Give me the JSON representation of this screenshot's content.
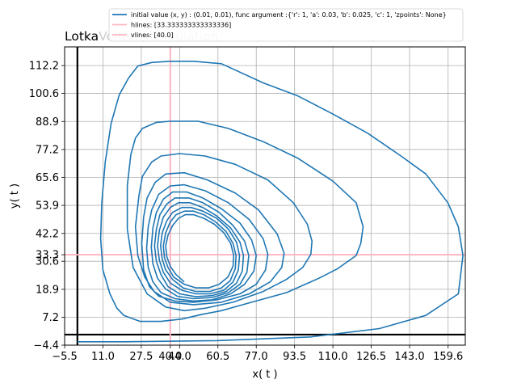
{
  "chart_data": {
    "type": "line",
    "title": "LotkaVolterra Simulation",
    "title_colors": [
      "#000000",
      "#cccccc"
    ],
    "title_split": 5,
    "xlabel": "x( t )",
    "ylabel": "y( t )",
    "xlim": [
      -5.5,
      167.0
    ],
    "ylim": [
      -4.4,
      120.0
    ],
    "grid": true,
    "legend_position": "top",
    "xticks": [
      -5.5,
      11.0,
      27.5,
      40.0,
      44.0,
      60.5,
      77.0,
      93.5,
      110.0,
      126.5,
      143.0,
      159.6
    ],
    "xtick_labels": [
      "−5.5",
      "11.0",
      "27.5",
      "40.0",
      "44.0",
      "60.5",
      "77.0",
      "93.5",
      "110.0",
      "126.5",
      "143.0",
      "159.6"
    ],
    "yticks": [
      -4.4,
      7.2,
      18.9,
      30.6,
      33.3,
      42.2,
      53.9,
      65.6,
      77.2,
      88.9,
      100.6,
      112.2
    ],
    "ytick_labels": [
      "−4.4",
      "7.2",
      "18.9",
      "30.6",
      "33.3",
      "42.2",
      "53.9",
      "65.6",
      "77.2",
      "88.9",
      "100.6",
      "112.2"
    ],
    "hlines": [
      33.333333333333336
    ],
    "vlines": [
      40.0
    ],
    "hlines_color": "#ffb6c1",
    "vlines_color": "#ffb6c1",
    "axis_lines_color": "#000000",
    "series_color": "#1f77b4",
    "legend": [
      "initial value (x, y) : (0.01, 0.01), func argument :{'r': 1, 'a': 0.03, 'b': 0.025, 'c': 1, 'zpoints': None}",
      "hlines: [33.333333333333336]",
      "vlines: [40.0]"
    ],
    "series": [
      {
        "name": "initial value (x, y) : (0.01, 0.01), func argument :{'r': 1, 'a': 0.03, 'b': 0.025, 'c': 1, 'zpoints': None}",
        "x": [
          0.0,
          5.0,
          20.0,
          60.0,
          100.0,
          130.0,
          150.0,
          164.0,
          166.0,
          164.0,
          159.5,
          150.0,
          140.0,
          125.0,
          110.0,
          95.0,
          80.0,
          62.0,
          50.0,
          40.0,
          32.0,
          26.0,
          22.0,
          18.0,
          14.5,
          12.0,
          10.5,
          10.0,
          11.0,
          14.0,
          17.0,
          20.0,
          27.0,
          36.0,
          45.0,
          54.0,
          62.0,
          75.0,
          90.0,
          104.0,
          112.0,
          120.0,
          122.0,
          123.0,
          120.0,
          110.0,
          95.0,
          80.0,
          65.0,
          52.0,
          40.0,
          34.0,
          28.0,
          25.0,
          23.0,
          21.5,
          21.5,
          24.0,
          30.0,
          38.0,
          46.0,
          55.0,
          67.0,
          80.0,
          90.0,
          97.0,
          100.5,
          101.0,
          99.0,
          93.0,
          82.0,
          68.0,
          55.0,
          44.0,
          36.0,
          32.0,
          28.0,
          26.5,
          25.0,
          26.0,
          29.0,
          33.0,
          40.0,
          50.0,
          62.0,
          74.0,
          83.0,
          88.0,
          89.0,
          86.0,
          78.0,
          68.0,
          56.0,
          46.0,
          38.0,
          33.5,
          30.0,
          28.5,
          27.7,
          28.5,
          31.0,
          35.0,
          42.0,
          50.0,
          60.0,
          70.0,
          77.0,
          81.0,
          82.0,
          80.0,
          74.0,
          65.0,
          55.0,
          46.0,
          40.0,
          35.0,
          32.0,
          30.5,
          29.8,
          30.5,
          32.5,
          36.0,
          42.0,
          50.0,
          58.0,
          66.0,
          72.0,
          76.0,
          77.0,
          75.0,
          70.0,
          62.0,
          54.0,
          47.0,
          41.0,
          37.0,
          34.0,
          32.5,
          31.8,
          32.5,
          34.5,
          38.0,
          43.0,
          50.0,
          58.0,
          65.0,
          70.0,
          73.0,
          73.8,
          72.0,
          67.0,
          61.0,
          54.0,
          48.0,
          42.0,
          38.5,
          35.5,
          34.0,
          33.2,
          34.0,
          36.0,
          39.0,
          44.0,
          51.0,
          58.0,
          64.0,
          68.5,
          71.0,
          71.5,
          70.0,
          66.0,
          60.0,
          54.0,
          48.5,
          43.5,
          40.0,
          37.0,
          35.3,
          34.5,
          35.3,
          37.0,
          40.0,
          45.0,
          51.0,
          57.0,
          63.0,
          67.0,
          69.3,
          69.8,
          68.5,
          65.0,
          60.0,
          54.0,
          49.0,
          45.0,
          41.0,
          38.5,
          36.5,
          35.8,
          36.5,
          38.0,
          41.0,
          45.5,
          51.0,
          57.0,
          62.0,
          65.8,
          68.0,
          68.3,
          67.0,
          64.0,
          59.5,
          54.5,
          50.0,
          46.0,
          42.5,
          40.0,
          38.0,
          37.0,
          37.5,
          39.0,
          41.5,
          46.0,
          51.0,
          56.5,
          61.0,
          64.8,
          67.0,
          67.3,
          66.0,
          63.0,
          59.0,
          54.5,
          50.0,
          46.5,
          43.5,
          41.0,
          39.0,
          38.0,
          38.5,
          40.0,
          42.5,
          46.0
        ],
        "y": [
          -3.0,
          -3.0,
          -3.0,
          -2.5,
          -1.0,
          2.5,
          8.0,
          17.0,
          33.0,
          45.0,
          55.0,
          67.0,
          74.0,
          84.0,
          92.0,
          99.5,
          105.0,
          113.0,
          114.0,
          114.0,
          113.5,
          112.0,
          107.0,
          100.0,
          88.0,
          72.0,
          55.0,
          40.0,
          27.0,
          17.0,
          11.0,
          8.0,
          5.5,
          5.5,
          6.5,
          8.5,
          10.0,
          13.5,
          17.5,
          23.5,
          27.5,
          33.0,
          38.0,
          45.0,
          55.0,
          64.0,
          73.5,
          80.5,
          86.0,
          89.0,
          89.0,
          88.5,
          86.0,
          82.0,
          75.0,
          62.0,
          44.0,
          28.0,
          17.0,
          11.5,
          10.0,
          11.0,
          13.5,
          18.0,
          23.0,
          28.0,
          33.5,
          39.0,
          46.0,
          55.0,
          64.5,
          71.0,
          74.5,
          75.5,
          74.5,
          72.0,
          66.0,
          58.0,
          45.0,
          33.0,
          24.0,
          18.0,
          13.5,
          12.5,
          13.5,
          17.0,
          22.0,
          28.0,
          34.0,
          42.0,
          52.0,
          59.0,
          64.5,
          67.5,
          67.0,
          63.5,
          57.0,
          49.0,
          38.0,
          27.0,
          20.0,
          16.0,
          14.0,
          13.5,
          14.5,
          17.0,
          21.0,
          27.0,
          33.5,
          40.0,
          48.0,
          55.0,
          60.0,
          62.5,
          62.0,
          58.5,
          52.0,
          45.0,
          36.0,
          28.0,
          22.0,
          17.5,
          15.0,
          14.0,
          14.5,
          17.0,
          21.0,
          26.5,
          33.0,
          39.5,
          46.5,
          52.5,
          57.0,
          59.5,
          59.5,
          56.5,
          51.0,
          44.5,
          36.5,
          29.5,
          23.5,
          19.0,
          16.0,
          15.0,
          15.5,
          17.5,
          21.0,
          26.0,
          33.0,
          39.0,
          45.5,
          51.0,
          55.0,
          57.0,
          57.0,
          54.5,
          50.0,
          44.0,
          37.0,
          30.5,
          25.0,
          20.0,
          17.0,
          15.8,
          16.3,
          18.0,
          21.5,
          26.5,
          33.0,
          38.5,
          44.5,
          49.5,
          53.0,
          55.0,
          55.0,
          53.0,
          49.0,
          43.5,
          37.0,
          31.0,
          26.0,
          21.5,
          18.5,
          17.0,
          17.0,
          18.5,
          22.0,
          27.0,
          33.0,
          38.5,
          44.0,
          48.5,
          51.5,
          53.0,
          53.0,
          51.0,
          47.5,
          42.5,
          37.0,
          31.5,
          27.0,
          23.0,
          19.5,
          18.0,
          18.0,
          19.5,
          22.5,
          27.5,
          33.0,
          38.0,
          43.0,
          47.0,
          50.0,
          51.5,
          51.5,
          50.0,
          47.0,
          42.5,
          37.0,
          32.0,
          28.0,
          24.0,
          21.0,
          19.5,
          19.5,
          21.0,
          24.0,
          28.5,
          33.0,
          38.0,
          42.5,
          46.0,
          48.5,
          50.0,
          50.0,
          48.5,
          45.5,
          41.5,
          37.0,
          32.5,
          28.5,
          25.0,
          22.0
        ]
      }
    ]
  }
}
